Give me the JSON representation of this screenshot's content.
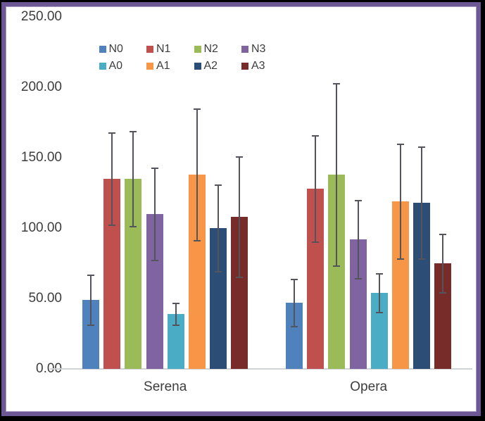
{
  "figure": {
    "kind_label": "clustered-column-chart-with-error-bars"
  },
  "colors": {
    "outer_background": "#000000",
    "frame_border": "#6e5795",
    "frame_border_inner_edge": "#a79ac2",
    "plot_background": "#ffffff",
    "axis_line": "#d0d3d8",
    "error_bar": "#54545c",
    "text": "#3d3d3d"
  },
  "chart_data": {
    "type": "bar",
    "title": "",
    "xlabel": "",
    "ylabel": "",
    "categories": [
      "Serena",
      "Opera"
    ],
    "series": [
      {
        "name": "N0",
        "color": "#4F81BD",
        "values": [
          49,
          47
        ],
        "errors": [
          18,
          17
        ]
      },
      {
        "name": "N1",
        "color": "#C0504D",
        "values": [
          135,
          128
        ],
        "errors": [
          33,
          38
        ]
      },
      {
        "name": "N2",
        "color": "#9BBB59",
        "values": [
          135,
          138
        ],
        "errors": [
          34,
          65
        ]
      },
      {
        "name": "N3",
        "color": "#8064A2",
        "values": [
          110,
          92
        ],
        "errors": [
          33,
          28
        ]
      },
      {
        "name": "A0",
        "color": "#4BACC6",
        "values": [
          39,
          54
        ],
        "errors": [
          8,
          14
        ]
      },
      {
        "name": "A1",
        "color": "#F79646",
        "values": [
          138,
          119
        ],
        "errors": [
          47,
          41
        ]
      },
      {
        "name": "A2",
        "color": "#2C4D75",
        "values": [
          100,
          118
        ],
        "errors": [
          31,
          40
        ]
      },
      {
        "name": "A3",
        "color": "#772C2A",
        "values": [
          108,
          75
        ],
        "errors": [
          43,
          21
        ]
      }
    ],
    "ylim": [
      0,
      250
    ],
    "ytick_labels": [
      "0.00",
      "50.00",
      "100.00",
      "150.00",
      "200.00",
      "250.00"
    ],
    "grid": false,
    "error_bars": true,
    "legend_position": "top-center",
    "legend_rows": [
      [
        "N0",
        "N1",
        "N2",
        "N3"
      ],
      [
        "A0",
        "A1",
        "A2",
        "A3"
      ]
    ]
  }
}
